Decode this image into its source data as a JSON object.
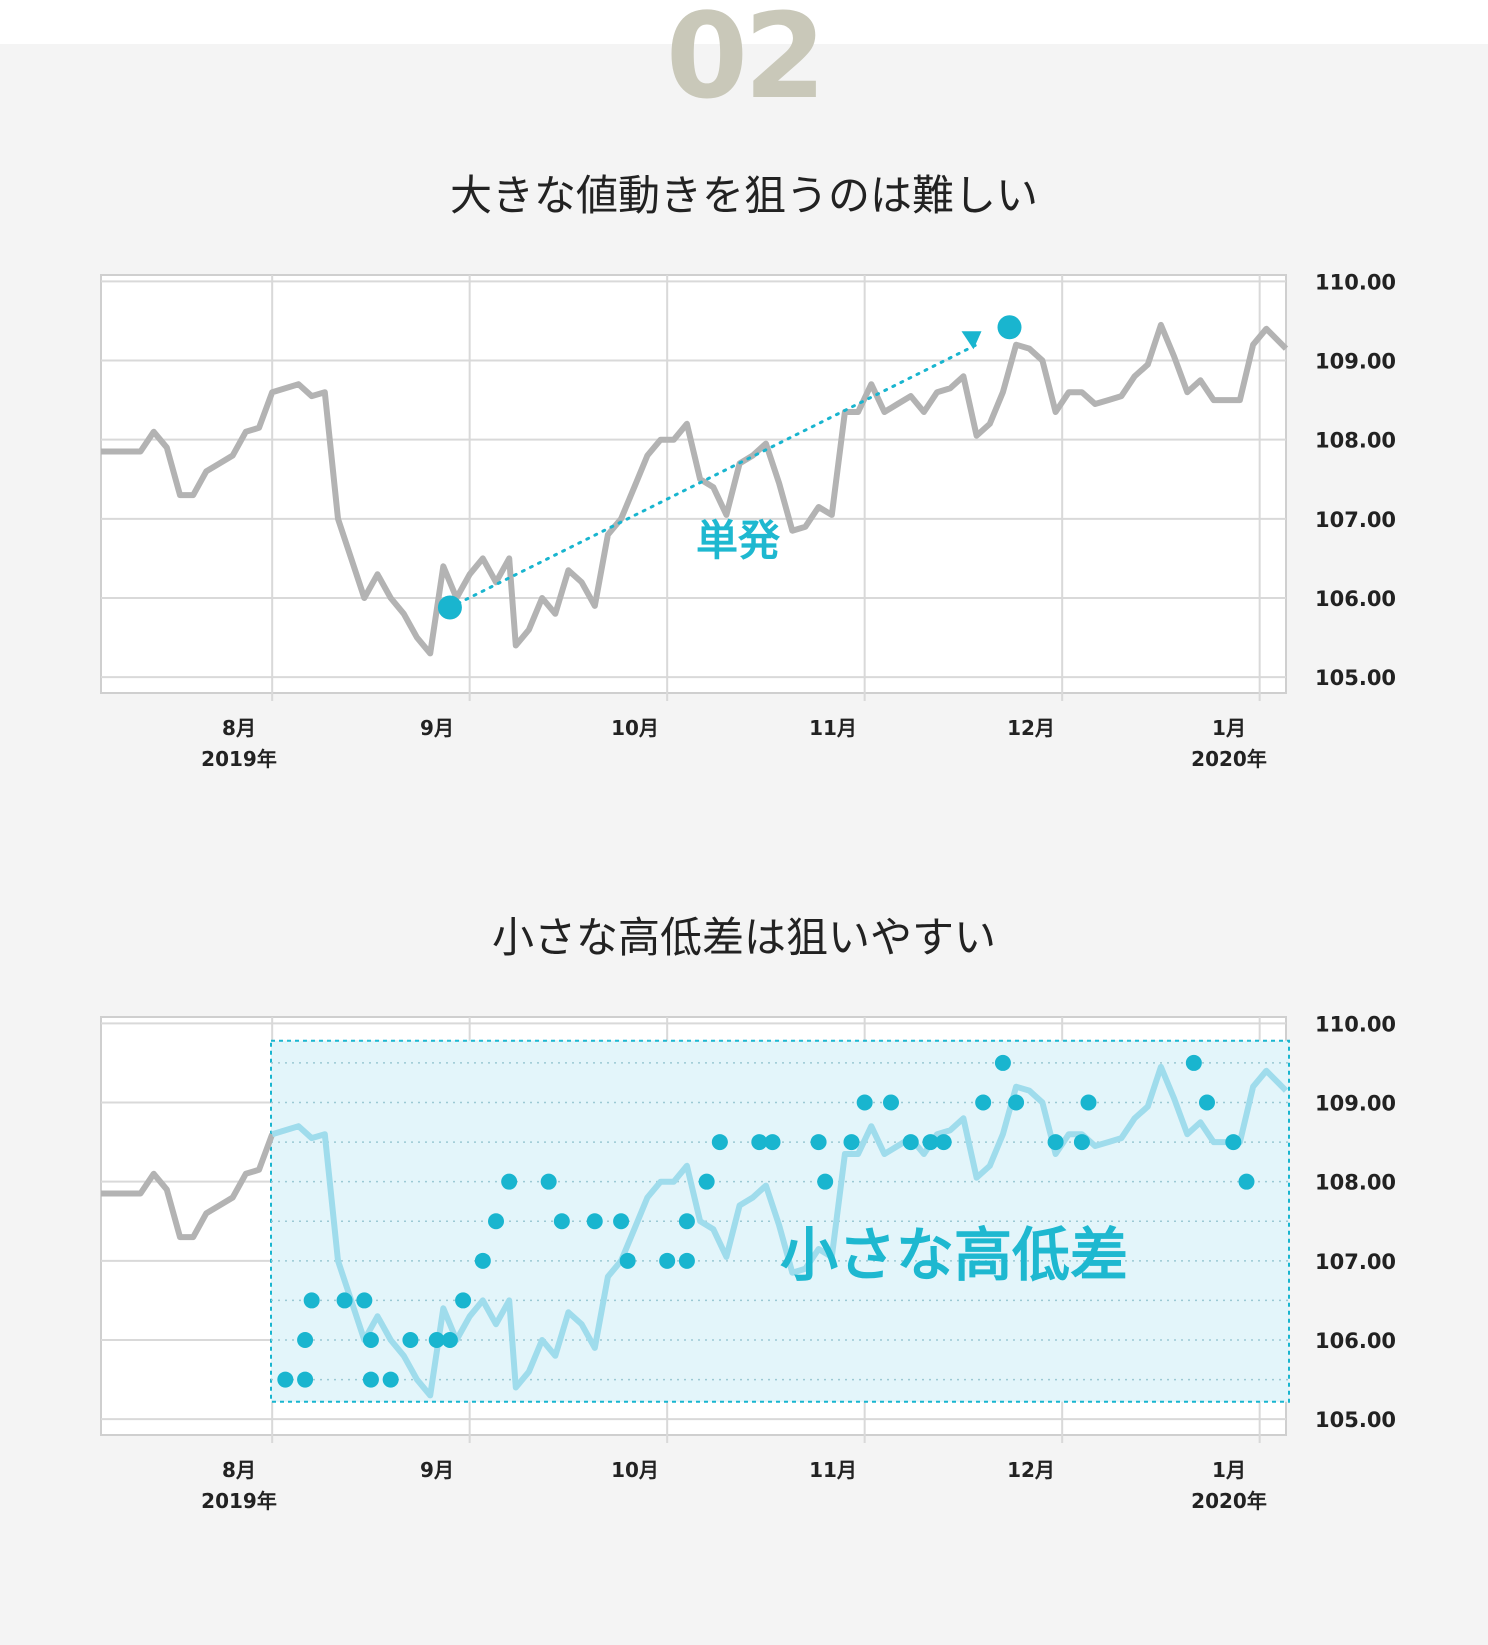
{
  "section_number": "02",
  "colors": {
    "price_line": "#b3b3b3",
    "accent": "#19b5cf",
    "highlight_line": "#9fdcec",
    "highlight_fill": "#e3f5fa",
    "grid": "#d9d9d9"
  },
  "chart_data": [
    {
      "type": "line",
      "title": "大きな値動きを狙うのは難しい",
      "x_tick_labels": [
        {
          "month": "8月",
          "year": "2019年"
        },
        {
          "month": "9月",
          "year": ""
        },
        {
          "month": "10月",
          "year": ""
        },
        {
          "month": "11月",
          "year": ""
        },
        {
          "month": "12月",
          "year": ""
        },
        {
          "month": "1月",
          "year": "2020年"
        }
      ],
      "y_tick_labels": [
        "110.00",
        "109.00",
        "108.00",
        "107.00",
        "106.00",
        "105.00"
      ],
      "ylim": [
        104.8,
        110.08
      ],
      "xlim": [
        0,
        180
      ],
      "series": [
        {
          "x": [
            0,
            3,
            6,
            8,
            10,
            12,
            14,
            16,
            18,
            20,
            22,
            24,
            26,
            28,
            30,
            32,
            34,
            36,
            38,
            40,
            42,
            44,
            46,
            48,
            50,
            52,
            54,
            56,
            58,
            60,
            62,
            63,
            65,
            67,
            69,
            71,
            73,
            75,
            77,
            79,
            81,
            83,
            85,
            87,
            89,
            91,
            93,
            95,
            97,
            99,
            101,
            103,
            105,
            107,
            109,
            111,
            113,
            115,
            117,
            119,
            121,
            123,
            125,
            127,
            129,
            131,
            133,
            135,
            137,
            139,
            141,
            143,
            145,
            147,
            149,
            151,
            153,
            155,
            157,
            159,
            161,
            163,
            165,
            167,
            169,
            171,
            173,
            175,
            177,
            180
          ],
          "values": [
            107.85,
            107.85,
            107.85,
            108.1,
            107.9,
            107.3,
            107.3,
            107.6,
            107.7,
            107.8,
            108.1,
            108.15,
            108.6,
            108.65,
            108.7,
            108.55,
            108.6,
            107.0,
            106.5,
            106.0,
            106.3,
            106.0,
            105.8,
            105.5,
            105.3,
            106.4,
            106.0,
            106.3,
            106.5,
            106.2,
            106.5,
            105.4,
            105.6,
            106.0,
            105.8,
            106.35,
            106.2,
            105.9,
            106.8,
            107.0,
            107.4,
            107.8,
            108.0,
            108.0,
            108.2,
            107.5,
            107.4,
            107.05,
            107.7,
            107.8,
            107.95,
            107.45,
            106.85,
            106.9,
            107.15,
            107.05,
            108.35,
            108.35,
            108.7,
            108.35,
            108.45,
            108.55,
            108.35,
            108.6,
            108.65,
            108.8,
            108.05,
            108.2,
            108.6,
            109.2,
            109.15,
            109.0,
            108.35,
            108.6,
            108.6,
            108.45,
            108.5,
            108.55,
            108.8,
            108.95,
            109.45,
            109.05,
            108.6,
            108.75,
            108.5,
            108.5,
            108.5,
            109.2,
            109.4,
            109.15
          ],
          "markers": [
            {
              "x": 53,
              "y": 105.88
            },
            {
              "x": 138,
              "y": 109.42
            }
          ]
        }
      ],
      "annotation": "単発"
    },
    {
      "type": "line",
      "title": "小さな高低差は狙いやすい",
      "x_tick_labels": [
        {
          "month": "8月",
          "year": "2019年"
        },
        {
          "month": "9月",
          "year": ""
        },
        {
          "month": "10月",
          "year": ""
        },
        {
          "month": "11月",
          "year": ""
        },
        {
          "month": "12月",
          "year": ""
        },
        {
          "month": "1月",
          "year": "2020年"
        }
      ],
      "y_tick_labels": [
        "110.00",
        "109.00",
        "108.00",
        "107.00",
        "106.00",
        "105.00"
      ],
      "ylim": [
        104.8,
        110.08
      ],
      "xlim": [
        0,
        180
      ],
      "series": [
        {
          "x": [
            0,
            3,
            6,
            8,
            10,
            12,
            14,
            16,
            18,
            20,
            22,
            24,
            26,
            28,
            30,
            32,
            34,
            36,
            38,
            40,
            42,
            44,
            46,
            48,
            50,
            52,
            54,
            56,
            58,
            60,
            62,
            63,
            65,
            67,
            69,
            71,
            73,
            75,
            77,
            79,
            81,
            83,
            85,
            87,
            89,
            91,
            93,
            95,
            97,
            99,
            101,
            103,
            105,
            107,
            109,
            111,
            113,
            115,
            117,
            119,
            121,
            123,
            125,
            127,
            129,
            131,
            133,
            135,
            137,
            139,
            141,
            143,
            145,
            147,
            149,
            151,
            153,
            155,
            157,
            159,
            161,
            163,
            165,
            167,
            169,
            171,
            173,
            175,
            177,
            180
          ],
          "values": [
            107.85,
            107.85,
            107.85,
            108.1,
            107.9,
            107.3,
            107.3,
            107.6,
            107.7,
            107.8,
            108.1,
            108.15,
            108.6,
            108.65,
            108.7,
            108.55,
            108.6,
            107.0,
            106.5,
            106.0,
            106.3,
            106.0,
            105.8,
            105.5,
            105.3,
            106.4,
            106.0,
            106.3,
            106.5,
            106.2,
            106.5,
            105.4,
            105.6,
            106.0,
            105.8,
            106.35,
            106.2,
            105.9,
            106.8,
            107.0,
            107.4,
            107.8,
            108.0,
            108.0,
            108.2,
            107.5,
            107.4,
            107.05,
            107.7,
            107.8,
            107.95,
            107.45,
            106.85,
            106.9,
            107.15,
            107.05,
            108.35,
            108.35,
            108.7,
            108.35,
            108.45,
            108.55,
            108.35,
            108.6,
            108.65,
            108.8,
            108.05,
            108.2,
            108.6,
            109.2,
            109.15,
            109.0,
            108.35,
            108.6,
            108.6,
            108.45,
            108.5,
            108.55,
            108.8,
            108.95,
            109.45,
            109.05,
            108.6,
            108.75,
            108.5,
            108.5,
            108.5,
            109.2,
            109.4,
            109.15
          ],
          "highlight_from_x": 26
        }
      ],
      "markers": [
        {
          "x": 28,
          "y": 105.5
        },
        {
          "x": 31,
          "y": 105.5
        },
        {
          "x": 31,
          "y": 106.0
        },
        {
          "x": 32,
          "y": 106.5
        },
        {
          "x": 37,
          "y": 106.5
        },
        {
          "x": 40,
          "y": 106.5
        },
        {
          "x": 41,
          "y": 106.0
        },
        {
          "x": 41,
          "y": 105.5
        },
        {
          "x": 44,
          "y": 105.5
        },
        {
          "x": 47,
          "y": 106.0
        },
        {
          "x": 51,
          "y": 106.0
        },
        {
          "x": 53,
          "y": 106.0
        },
        {
          "x": 55,
          "y": 106.5
        },
        {
          "x": 58,
          "y": 107.0
        },
        {
          "x": 60,
          "y": 107.5
        },
        {
          "x": 62,
          "y": 108.0
        },
        {
          "x": 68,
          "y": 108.0
        },
        {
          "x": 70,
          "y": 107.5
        },
        {
          "x": 75,
          "y": 107.5
        },
        {
          "x": 79,
          "y": 107.5
        },
        {
          "x": 80,
          "y": 107.0
        },
        {
          "x": 86,
          "y": 107.0
        },
        {
          "x": 89,
          "y": 107.0
        },
        {
          "x": 89,
          "y": 107.5
        },
        {
          "x": 92,
          "y": 108.0
        },
        {
          "x": 94,
          "y": 108.5
        },
        {
          "x": 100,
          "y": 108.5
        },
        {
          "x": 102,
          "y": 108.5
        },
        {
          "x": 109,
          "y": 108.5
        },
        {
          "x": 110,
          "y": 108.0
        },
        {
          "x": 114,
          "y": 108.5
        },
        {
          "x": 116,
          "y": 109.0
        },
        {
          "x": 120,
          "y": 109.0
        },
        {
          "x": 123,
          "y": 108.5
        },
        {
          "x": 126,
          "y": 108.5
        },
        {
          "x": 128,
          "y": 108.5
        },
        {
          "x": 134,
          "y": 109.0
        },
        {
          "x": 137,
          "y": 109.5
        },
        {
          "x": 139,
          "y": 109.0
        },
        {
          "x": 145,
          "y": 108.5
        },
        {
          "x": 149,
          "y": 108.5
        },
        {
          "x": 150,
          "y": 109.0
        },
        {
          "x": 166,
          "y": 109.5
        },
        {
          "x": 168,
          "y": 109.0
        },
        {
          "x": 172,
          "y": 108.5
        },
        {
          "x": 174,
          "y": 108.0
        }
      ],
      "reference_levels": [
        109.5,
        109.0,
        108.5,
        108.0,
        107.5,
        107.0,
        106.5,
        106.0,
        105.5
      ],
      "annotation": "小さな高低差"
    }
  ]
}
